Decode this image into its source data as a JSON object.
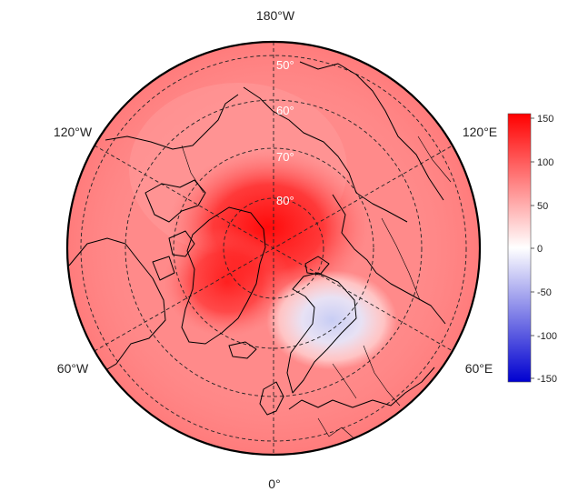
{
  "map": {
    "projection": "north-polar-stereographic",
    "center_lon": "0°",
    "longitude_labels": {
      "top": "180°W",
      "bottom": "0°",
      "upper_left": "120°W",
      "upper_right": "120°E",
      "lower_left": "60°W",
      "lower_right": "60°E"
    },
    "latitude_labels": [
      "50°",
      "60°",
      "70°",
      "80°"
    ],
    "features": [
      "coastlines",
      "country-borders",
      "lat-lon-graticule"
    ]
  },
  "colorbar": {
    "ticks": [
      "150",
      "100",
      "50",
      "0",
      "-50",
      "-100",
      "-150"
    ],
    "range": [
      -150,
      150
    ],
    "colors": {
      "max": "#ff0000",
      "mid": "#ffffff",
      "min": "#0000d0"
    }
  }
}
